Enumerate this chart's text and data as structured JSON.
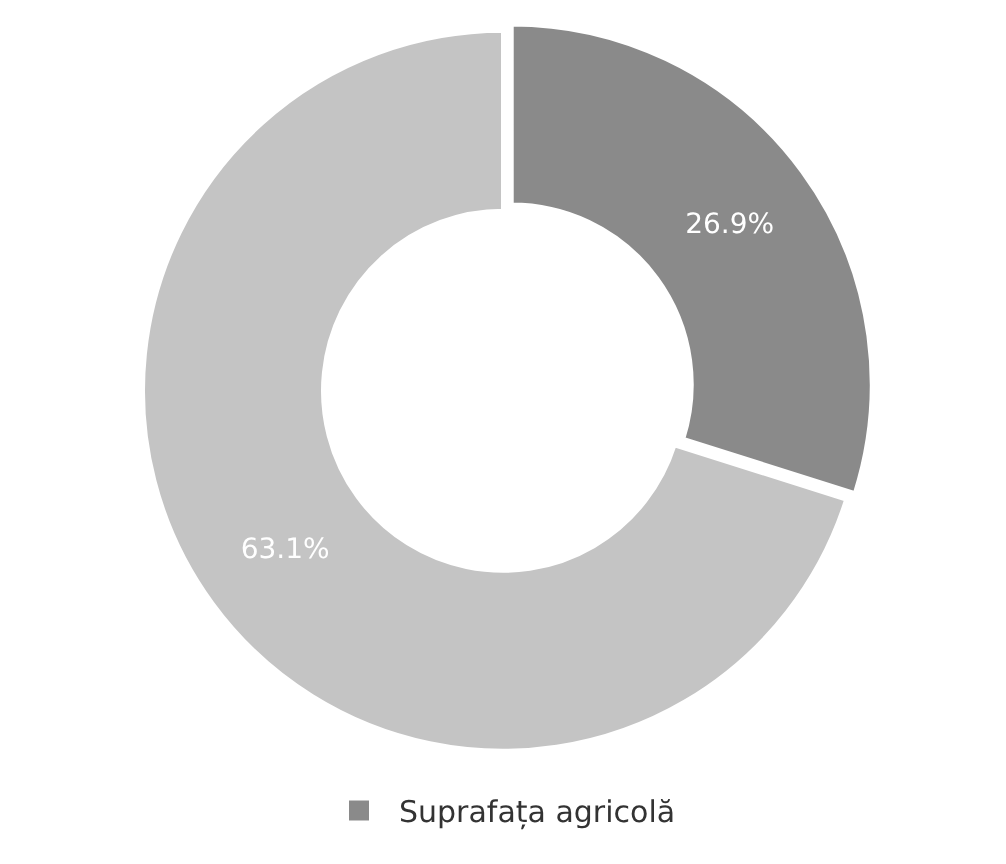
{
  "chart_data": {
    "type": "donut",
    "categories": [
      "Suprafața agricolă",
      null
    ],
    "values": [
      26.9,
      63.1
    ],
    "colors": [
      "#8a8a8a",
      "#c4c4c4"
    ],
    "value_labels": [
      "26.9%",
      "63.1%"
    ],
    "legend": "bottom"
  }
}
